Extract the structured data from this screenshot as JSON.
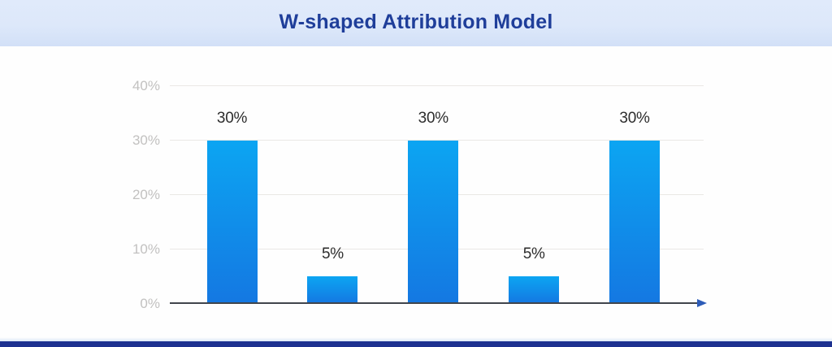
{
  "title": "W-shaped Attribution Model",
  "colors": {
    "header_background": "#dde8fa",
    "title_text": "#1f3e9a",
    "bar_gradient_top": "#0ca5f2",
    "bar_gradient_bottom": "#1478e2",
    "gridline": "#eae8e5",
    "axis_line": "#41454c",
    "axis_arrow": "#2d5cb8",
    "y_tick_text": "#c2c1c0",
    "bar_label_text": "#2d2d2d",
    "footer_bar": "#1d3190"
  },
  "chart_data": {
    "type": "bar",
    "title": "W-shaped Attribution Model",
    "categories": [
      "",
      "",
      "",
      "",
      ""
    ],
    "values": [
      30,
      5,
      30,
      5,
      30
    ],
    "bar_labels": [
      "30%",
      "5%",
      "30%",
      "5%",
      "30%"
    ],
    "y_ticks": [
      0,
      10,
      20,
      30,
      40
    ],
    "y_tick_labels": [
      "0%",
      "10%",
      "20%",
      "30%",
      "40%"
    ],
    "xlabel": "",
    "ylabel": "",
    "ylim": [
      0,
      40
    ],
    "grid": "horizontal",
    "legend": "none"
  }
}
